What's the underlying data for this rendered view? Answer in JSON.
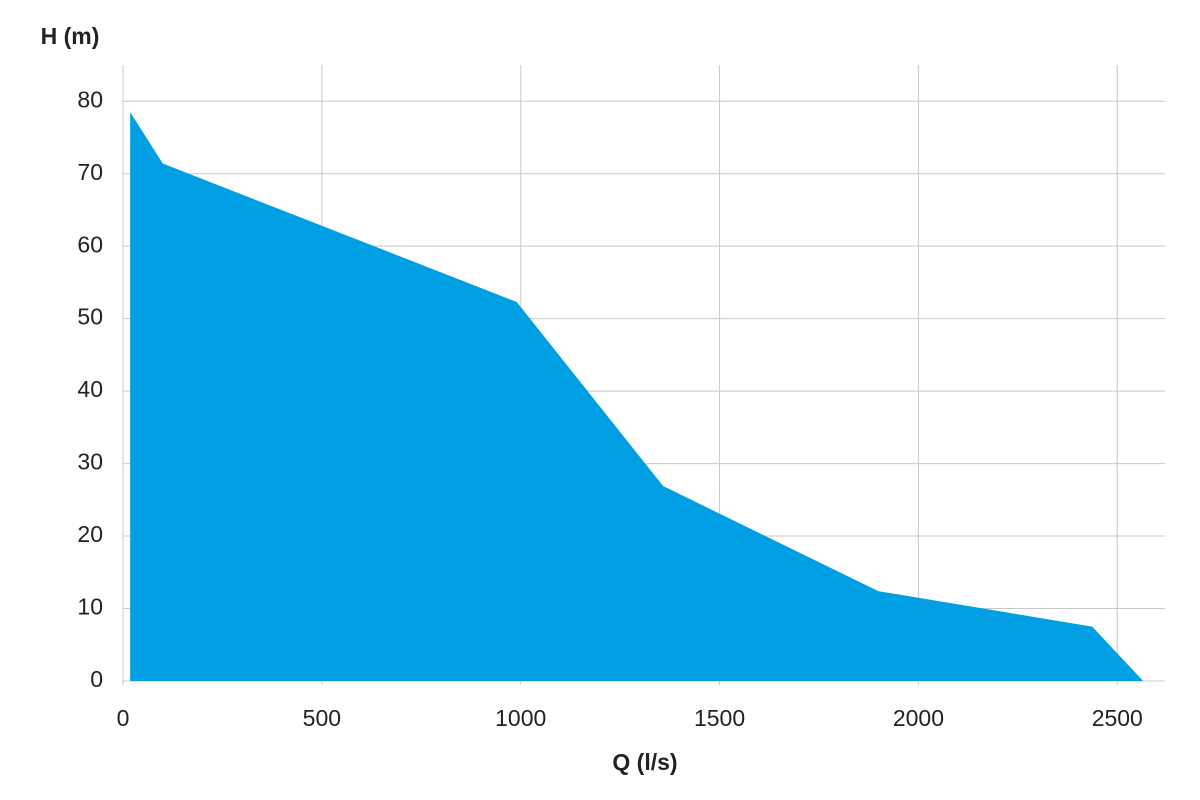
{
  "chart_data": {
    "type": "area",
    "x_label": "Q (l/s)",
    "y_label": "H (m)",
    "x": [
      18,
      100,
      990,
      1358,
      1899,
      2437,
      2565
    ],
    "values": [
      78.5,
      71.4,
      52.3,
      26.9,
      12.4,
      7.5,
      0
    ],
    "color": "#009fe3",
    "xlim": [
      0,
      2620
    ],
    "ylim": [
      0,
      85
    ],
    "xticks": [
      0,
      500,
      1000,
      1500,
      2000,
      2500
    ],
    "yticks": [
      0,
      10,
      20,
      30,
      40,
      50,
      60,
      70,
      80
    ],
    "grid": true
  }
}
